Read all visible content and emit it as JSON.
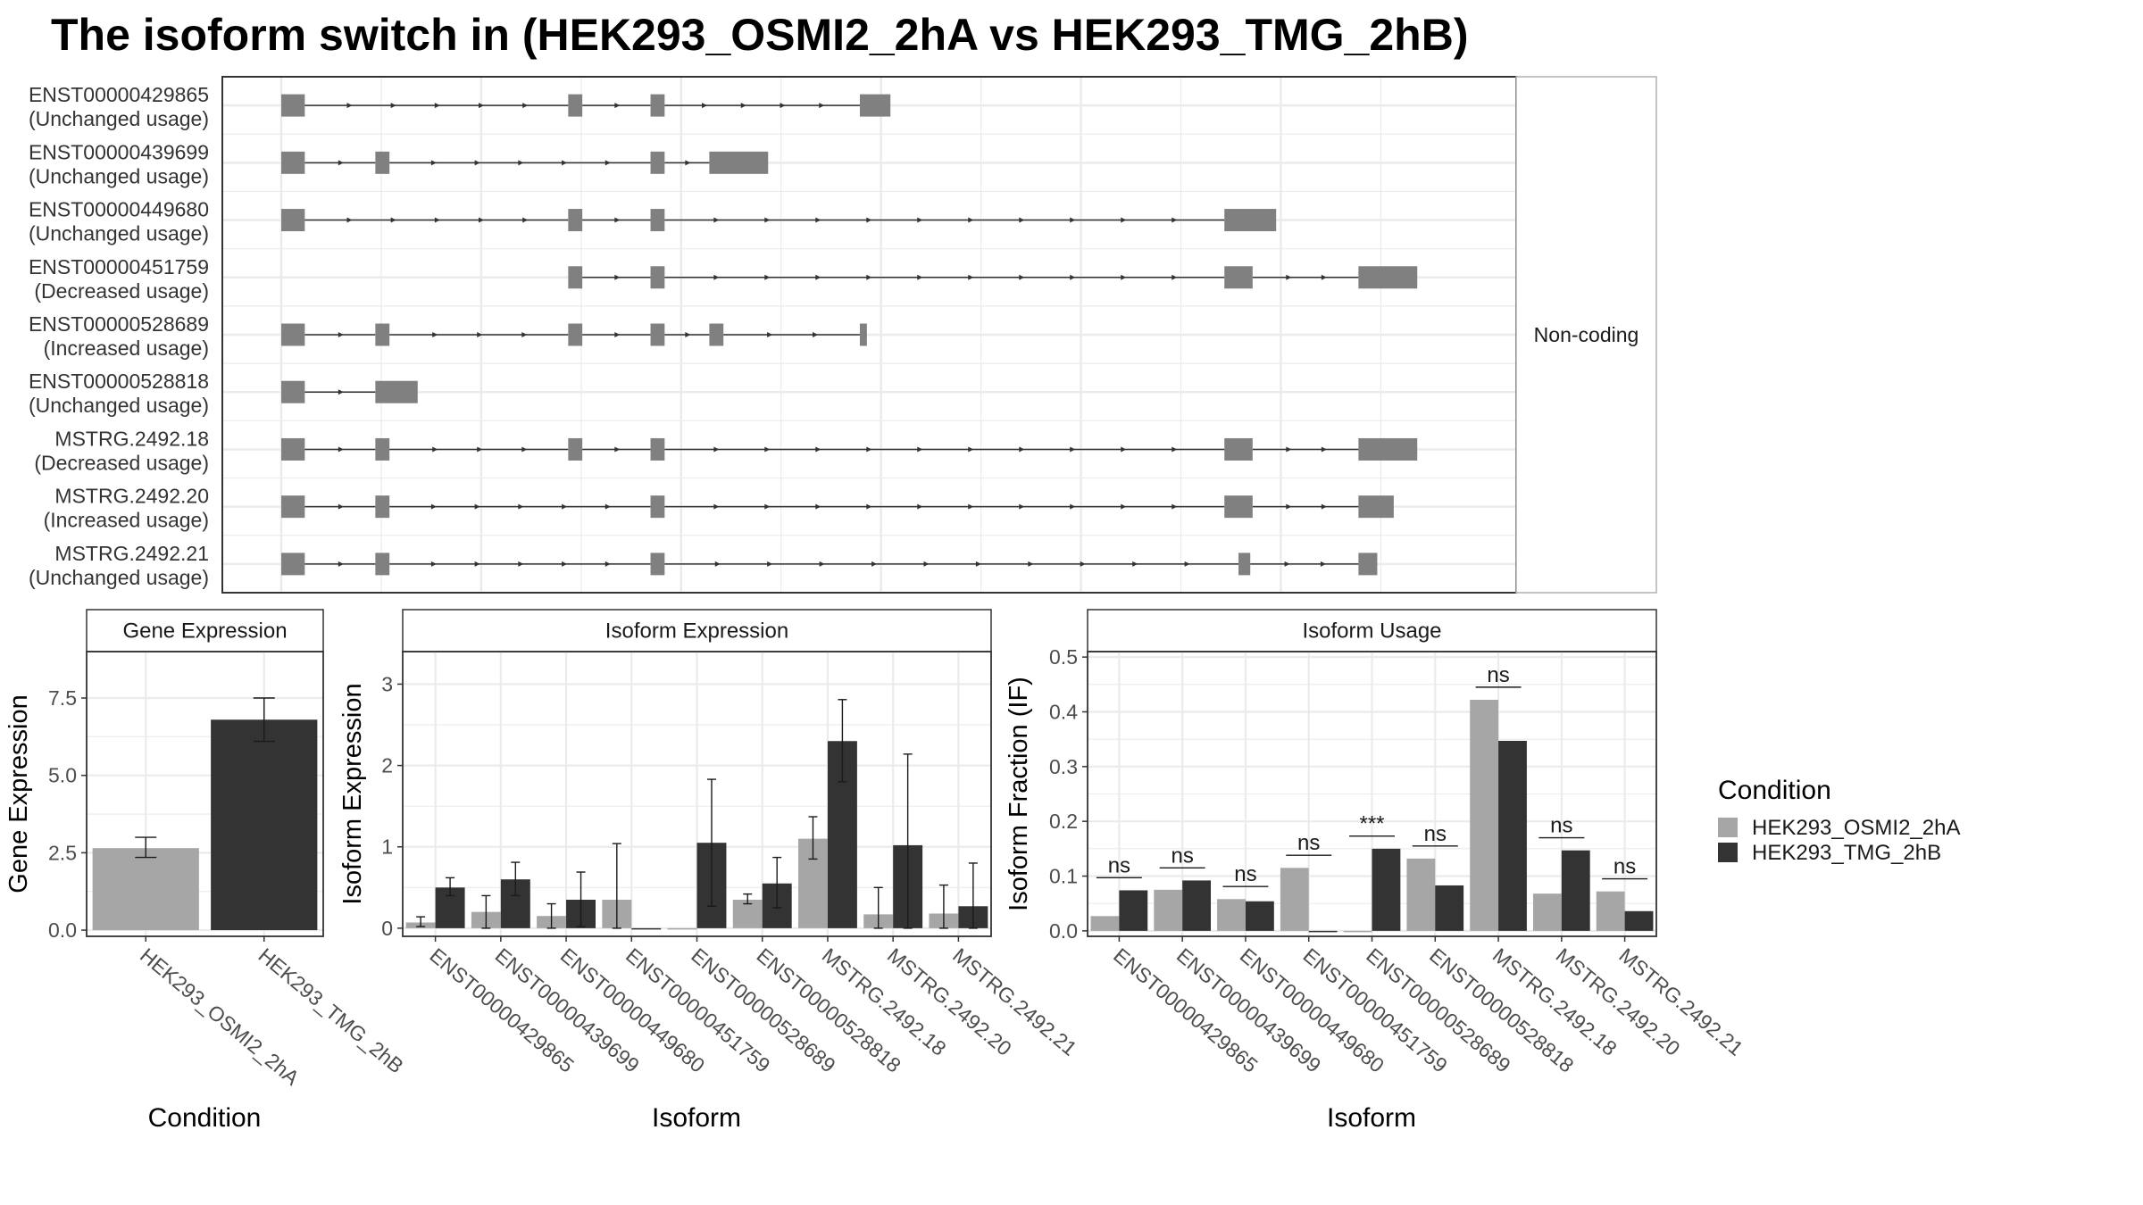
{
  "title": "The isoform switch in  (HEK293_OSMI2_2hA vs HEK293_TMG_2hB)",
  "colors": {
    "condition_a": "#a6a6a6",
    "condition_b": "#333333",
    "exon": "#808080",
    "grid": "#ebebeb",
    "strip_bg": "#ffffff",
    "panel_border": "#333333"
  },
  "structure": {
    "facet_label": "Non-coding",
    "coord_range": [
      0,
      1000
    ],
    "transcripts": [
      {
        "id": "ENST00000429865",
        "usage": "(Unchanged usage)",
        "exons": [
          [
            0,
            20
          ],
          [
            244,
            256
          ],
          [
            314,
            326
          ],
          [
            492,
            518
          ]
        ]
      },
      {
        "id": "ENST00000439699",
        "usage": "(Unchanged usage)",
        "exons": [
          [
            0,
            20
          ],
          [
            80,
            92
          ],
          [
            314,
            326
          ],
          [
            364,
            414
          ]
        ]
      },
      {
        "id": "ENST00000449680",
        "usage": "(Unchanged usage)",
        "exons": [
          [
            0,
            20
          ],
          [
            244,
            256
          ],
          [
            314,
            326
          ],
          [
            802,
            846
          ]
        ]
      },
      {
        "id": "ENST00000451759",
        "usage": "(Decreased usage)",
        "exons": [
          [
            244,
            256
          ],
          [
            314,
            326
          ],
          [
            802,
            826
          ],
          [
            916,
            966
          ]
        ]
      },
      {
        "id": "ENST00000528689",
        "usage": "(Increased usage)",
        "exons": [
          [
            0,
            20
          ],
          [
            80,
            92
          ],
          [
            244,
            256
          ],
          [
            314,
            326
          ],
          [
            364,
            376
          ],
          [
            492,
            498
          ]
        ]
      },
      {
        "id": "ENST00000528818",
        "usage": "(Unchanged usage)",
        "exons": [
          [
            0,
            20
          ],
          [
            80,
            116
          ]
        ]
      },
      {
        "id": "MSTRG.2492.18",
        "usage": "(Decreased usage)",
        "exons": [
          [
            0,
            20
          ],
          [
            80,
            92
          ],
          [
            244,
            256
          ],
          [
            314,
            326
          ],
          [
            802,
            826
          ],
          [
            916,
            966
          ]
        ]
      },
      {
        "id": "MSTRG.2492.20",
        "usage": "(Increased usage)",
        "exons": [
          [
            0,
            20
          ],
          [
            80,
            92
          ],
          [
            314,
            326
          ],
          [
            802,
            826
          ],
          [
            916,
            946
          ]
        ]
      },
      {
        "id": "MSTRG.2492.21",
        "usage": "(Unchanged usage)",
        "exons": [
          [
            0,
            20
          ],
          [
            80,
            92
          ],
          [
            314,
            326
          ],
          [
            814,
            824
          ],
          [
            916,
            932
          ]
        ]
      }
    ]
  },
  "legend": {
    "title": "Condition",
    "entries": [
      "HEK293_OSMI2_2hA",
      "HEK293_TMG_2hB"
    ]
  },
  "chart_data": [
    {
      "type": "bar",
      "strip": "Gene Expression",
      "xlabel": "Condition",
      "ylabel": "Gene Expression",
      "ylim": [
        -0.2,
        9.0
      ],
      "yticks": [
        0.0,
        2.5,
        5.0,
        7.5
      ],
      "ytick_labels": [
        "0.0",
        "2.5",
        "5.0",
        "7.5"
      ],
      "categories": [
        "HEK293_OSMI2_2hA",
        "HEK293_TMG_2hB"
      ],
      "values": [
        2.65,
        6.8
      ],
      "errors": [
        [
          2.35,
          3.0
        ],
        [
          6.1,
          7.5
        ]
      ]
    },
    {
      "type": "bar",
      "strip": "Isoform Expression",
      "xlabel": "Isoform",
      "ylabel": "Isoform Expression",
      "ylim": [
        -0.1,
        3.4
      ],
      "yticks": [
        0,
        1,
        2,
        3
      ],
      "ytick_labels": [
        "0",
        "1",
        "2",
        "3"
      ],
      "categories": [
        "ENST00000429865",
        "ENST00000439699",
        "ENST00000449680",
        "ENST00000451759",
        "ENST00000528689",
        "ENST00000528818",
        "MSTRG.2492.18",
        "MSTRG.2492.20",
        "MSTRG.2492.21"
      ],
      "series": [
        {
          "name": "HEK293_OSMI2_2hA",
          "values": [
            0.07,
            0.2,
            0.15,
            0.35,
            0.0,
            0.35,
            1.1,
            0.17,
            0.18
          ],
          "errors": [
            [
              0.02,
              0.14
            ],
            [
              0.0,
              0.4
            ],
            [
              0.0,
              0.3
            ],
            [
              0.0,
              1.04
            ],
            null,
            [
              0.3,
              0.42
            ],
            [
              0.85,
              1.37
            ],
            [
              0.0,
              0.5
            ],
            [
              0.0,
              0.53
            ]
          ]
        },
        {
          "name": "HEK293_TMG_2hB",
          "values": [
            0.5,
            0.6,
            0.35,
            0.0,
            1.05,
            0.55,
            2.3,
            1.02,
            0.27
          ],
          "errors": [
            [
              0.4,
              0.62
            ],
            [
              0.4,
              0.81
            ],
            [
              0.02,
              0.69
            ],
            null,
            [
              0.27,
              1.83
            ],
            [
              0.25,
              0.87
            ],
            [
              1.8,
              2.81
            ],
            [
              0.0,
              2.14
            ],
            [
              0.0,
              0.8
            ]
          ]
        }
      ]
    },
    {
      "type": "bar",
      "strip": "Isoform Usage",
      "xlabel": "Isoform",
      "ylabel": "Isoform Fraction (IF)",
      "ylim": [
        -0.01,
        0.51
      ],
      "yticks": [
        0.0,
        0.1,
        0.2,
        0.3,
        0.4,
        0.5
      ],
      "ytick_labels": [
        "0.0",
        "0.1",
        "0.2",
        "0.3",
        "0.4",
        "0.5"
      ],
      "categories": [
        "ENST00000429865",
        "ENST00000439699",
        "ENST00000449680",
        "ENST00000451759",
        "ENST00000528689",
        "ENST00000528818",
        "MSTRG.2492.18",
        "MSTRG.2492.20",
        "MSTRG.2492.21"
      ],
      "series": [
        {
          "name": "HEK293_OSMI2_2hA",
          "values": [
            0.027,
            0.075,
            0.058,
            0.115,
            0.0,
            0.132,
            0.422,
            0.068,
            0.072
          ]
        },
        {
          "name": "HEK293_TMG_2hB",
          "values": [
            0.074,
            0.092,
            0.054,
            0.0,
            0.15,
            0.083,
            0.347,
            0.147,
            0.036
          ]
        }
      ],
      "significance": [
        {
          "label": "ns",
          "y": 0.097
        },
        {
          "label": "ns",
          "y": 0.115
        },
        {
          "label": "ns",
          "y": 0.081
        },
        {
          "label": "ns",
          "y": 0.138
        },
        {
          "label": "***",
          "y": 0.173
        },
        {
          "label": "ns",
          "y": 0.155
        },
        {
          "label": "ns",
          "y": 0.445
        },
        {
          "label": "ns",
          "y": 0.17
        },
        {
          "label": "ns",
          "y": 0.095
        }
      ]
    }
  ]
}
